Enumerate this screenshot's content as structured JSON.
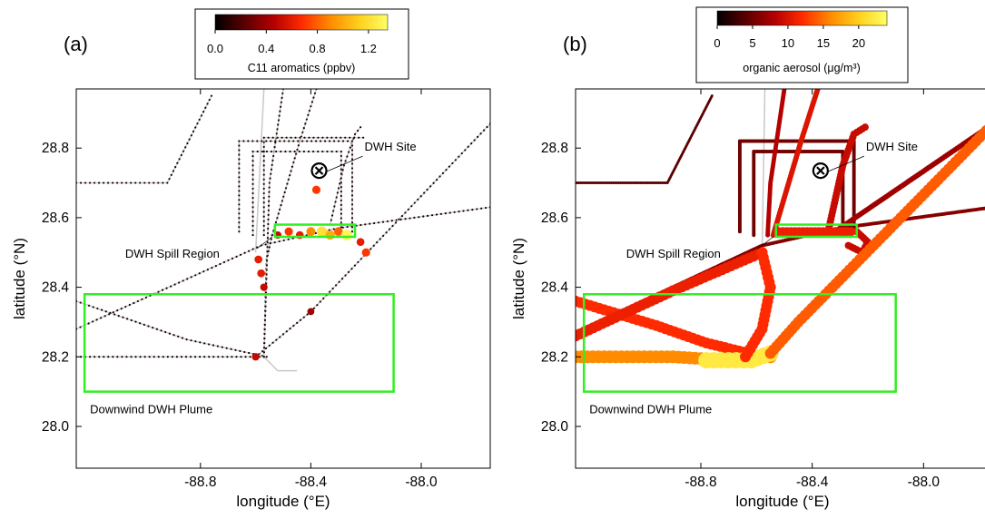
{
  "chart_data": [
    {
      "panel_label": "(a)",
      "type": "scatter",
      "xlabel": "longitude (°E)",
      "ylabel": "latitude (°N)",
      "xlim": [
        -89.25,
        -87.75
      ],
      "ylim": [
        27.88,
        28.97
      ],
      "xticks": [
        -88.8,
        -88.4,
        -88.0
      ],
      "xtick_labels": [
        "-88.8",
        "-88.4",
        "-88.0"
      ],
      "yticks": [
        28.0,
        28.2,
        28.4,
        28.6,
        28.8
      ],
      "ytick_labels": [
        "28.0",
        "28.2",
        "28.4",
        "28.6",
        "28.8"
      ],
      "colorbar": {
        "label": "C11 aromatics (ppbv)",
        "min": 0.0,
        "max": 1.35,
        "ticks": [
          0.0,
          0.4,
          0.8,
          1.2
        ],
        "tick_labels": [
          "0.0",
          "0.4",
          "0.8",
          "1.2"
        ]
      },
      "color_scale": [
        "#000000",
        "#5a0000",
        "#b40000",
        "#ff2a00",
        "#ff8c00",
        "#ffd21e",
        "#ffff66"
      ],
      "tracks": [
        [
          [
            -89.25,
            28.7
          ],
          [
            -88.92,
            28.7
          ],
          [
            -88.76,
            28.95
          ]
        ],
        [
          [
            -89.25,
            28.28
          ],
          [
            -88.58,
            28.52
          ],
          [
            -88.3,
            28.57
          ],
          [
            -87.75,
            28.63
          ]
        ],
        [
          [
            -88.6,
            28.2
          ],
          [
            -88.4,
            28.33
          ],
          [
            -87.75,
            28.87
          ]
        ],
        [
          [
            -89.25,
            28.36
          ],
          [
            -88.85,
            28.25
          ],
          [
            -88.56,
            28.2
          ]
        ],
        [
          [
            -89.25,
            28.2
          ],
          [
            -88.57,
            28.2
          ],
          [
            -88.56,
            28.48
          ],
          [
            -88.54,
            28.55
          ]
        ],
        [
          [
            -88.57,
            28.2
          ],
          [
            -88.55,
            28.7
          ],
          [
            -88.5,
            28.97
          ]
        ],
        [
          [
            -88.54,
            28.55
          ],
          [
            -88.44,
            28.82
          ],
          [
            -88.38,
            28.97
          ]
        ],
        [
          [
            -88.33,
            28.58
          ],
          [
            -88.28,
            28.75
          ],
          [
            -88.24,
            28.84
          ],
          [
            -88.22,
            28.86
          ]
        ],
        [
          [
            -88.66,
            28.56
          ],
          [
            -88.66,
            28.82
          ],
          [
            -88.25,
            28.82
          ],
          [
            -88.25,
            28.56
          ]
        ],
        [
          [
            -88.61,
            28.55
          ],
          [
            -88.61,
            28.79
          ],
          [
            -88.29,
            28.79
          ],
          [
            -88.29,
            28.56
          ]
        ],
        [
          [
            -88.57,
            28.55
          ],
          [
            -88.57,
            28.83
          ],
          [
            -88.21,
            28.83
          ]
        ]
      ],
      "data_points": [
        [
          -88.52,
          28.55,
          0.5
        ],
        [
          -88.48,
          28.56,
          0.7
        ],
        [
          -88.44,
          28.55,
          0.6
        ],
        [
          -88.4,
          28.56,
          0.9
        ],
        [
          -88.36,
          28.56,
          1.2
        ],
        [
          -88.33,
          28.55,
          1.0
        ],
        [
          -88.3,
          28.56,
          0.8
        ],
        [
          -88.27,
          28.55,
          1.3
        ],
        [
          -88.22,
          28.53,
          0.6
        ],
        [
          -88.2,
          28.5,
          0.7
        ],
        [
          -88.38,
          28.68,
          0.7
        ],
        [
          -88.59,
          28.48,
          0.6
        ],
        [
          -88.58,
          28.44,
          0.6
        ],
        [
          -88.57,
          28.4,
          0.5
        ],
        [
          -88.4,
          28.33,
          0.4
        ],
        [
          -88.6,
          28.2,
          0.5
        ]
      ],
      "background_tracks": [
        [
          [
            -88.57,
            28.97
          ],
          [
            -88.6,
            28.5
          ]
        ],
        [
          [
            -88.57,
            28.2
          ],
          [
            -88.52,
            28.16
          ],
          [
            -88.45,
            28.16
          ]
        ]
      ],
      "boxes": [
        {
          "name": "spill",
          "lon": [
            -88.53,
            -88.24
          ],
          "lat": [
            28.545,
            28.58
          ]
        },
        {
          "name": "plume",
          "lon": [
            -89.22,
            -88.1
          ],
          "lat": [
            28.1,
            28.38
          ]
        }
      ],
      "site": {
        "lon": -88.37,
        "lat": 28.735
      },
      "annotations": {
        "site_label": "DWH Site",
        "spill_label": "DWH Spill Region",
        "plume_label": "Downwind DWH Plume"
      }
    },
    {
      "panel_label": "(b)",
      "type": "scatter",
      "xlabel": "longitude (°E)",
      "ylabel": "latitude (°N)",
      "xlim": [
        -89.25,
        -87.75
      ],
      "ylim": [
        27.88,
        28.97
      ],
      "xticks": [
        -88.8,
        -88.4,
        -88.0
      ],
      "xtick_labels": [
        "-88.8",
        "-88.4",
        "-88.0"
      ],
      "yticks": [
        28.0,
        28.2,
        28.4,
        28.6,
        28.8
      ],
      "ytick_labels": [
        "28.0",
        "28.2",
        "28.4",
        "28.6",
        "28.8"
      ],
      "colorbar": {
        "label": "organic aerosol (μg/m³)",
        "min": 0,
        "max": 24,
        "ticks": [
          0,
          5,
          10,
          15,
          20
        ],
        "tick_labels": [
          "0",
          "5",
          "10",
          "15",
          "20"
        ]
      },
      "color_scale": [
        "#000000",
        "#5a0000",
        "#b40000",
        "#ff2a00",
        "#ff8c00",
        "#ffd21e",
        "#ffff66"
      ],
      "tracks": [
        {
          "value": 4,
          "width": 3,
          "points": [
            [
              -89.25,
              28.7
            ],
            [
              -88.92,
              28.7
            ],
            [
              -88.76,
              28.95
            ]
          ]
        },
        {
          "value": 6,
          "width": 4,
          "points": [
            [
              -89.25,
              28.27
            ],
            [
              -88.58,
              28.52
            ],
            [
              -88.3,
              28.57
            ],
            [
              -87.75,
              28.63
            ]
          ]
        },
        {
          "value": 5,
          "width": 4,
          "points": [
            [
              -88.66,
              28.56
            ],
            [
              -88.66,
              28.82
            ],
            [
              -88.25,
              28.82
            ],
            [
              -88.25,
              28.56
            ]
          ]
        },
        {
          "value": 5,
          "width": 4,
          "points": [
            [
              -88.61,
              28.55
            ],
            [
              -88.61,
              28.79
            ],
            [
              -88.29,
              28.79
            ],
            [
              -88.29,
              28.56
            ]
          ]
        },
        {
          "value": 8,
          "width": 5,
          "points": [
            [
              -88.56,
              28.55
            ],
            [
              -88.55,
              28.7
            ],
            [
              -88.5,
              28.97
            ]
          ]
        },
        {
          "value": 10,
          "width": 6,
          "points": [
            [
              -88.54,
              28.55
            ],
            [
              -88.44,
              28.82
            ],
            [
              -88.38,
              28.97
            ]
          ]
        },
        {
          "value": 9,
          "width": 8,
          "points": [
            [
              -88.34,
              28.57
            ],
            [
              -88.29,
              28.75
            ],
            [
              -88.25,
              28.84
            ],
            [
              -88.21,
              28.86
            ]
          ]
        },
        {
          "value": 7,
          "width": 6,
          "points": [
            [
              -87.75,
              28.87
            ],
            [
              -88.3,
              28.57
            ]
          ]
        },
        {
          "value": 9,
          "width": 8,
          "points": [
            [
              -88.24,
              28.56
            ],
            [
              -88.2,
              28.53
            ],
            [
              -88.22,
              28.5
            ],
            [
              -88.27,
              28.52
            ]
          ]
        },
        {
          "value": 12,
          "width": 12,
          "points": [
            [
              -89.25,
              28.36
            ],
            [
              -88.96,
              28.29
            ],
            [
              -88.78,
              28.24
            ],
            [
              -88.58,
              28.2
            ]
          ]
        },
        {
          "value": 16,
          "width": 14,
          "points": [
            [
              -89.25,
              28.2
            ],
            [
              -88.9,
              28.2
            ],
            [
              -88.7,
              28.19
            ],
            [
              -88.55,
              28.2
            ]
          ]
        },
        {
          "value": 22,
          "width": 18,
          "points": [
            [
              -88.78,
              28.19
            ],
            [
              -88.62,
              28.19
            ],
            [
              -88.55,
              28.21
            ]
          ]
        },
        {
          "value": 14,
          "width": 12,
          "points": [
            [
              -88.55,
              28.21
            ],
            [
              -88.45,
              28.3
            ],
            [
              -87.75,
              28.87
            ]
          ]
        },
        {
          "value": 11,
          "width": 12,
          "points": [
            [
              -89.25,
              28.26
            ],
            [
              -88.9,
              28.39
            ],
            [
              -88.58,
              28.5
            ]
          ]
        },
        {
          "value": 12,
          "width": 12,
          "points": [
            [
              -88.58,
              28.5
            ],
            [
              -88.55,
              28.4
            ],
            [
              -88.58,
              28.28
            ],
            [
              -88.64,
              28.2
            ]
          ]
        },
        {
          "value": 11,
          "width": 10,
          "points": [
            [
              -88.52,
              28.56
            ],
            [
              -88.26,
              28.56
            ]
          ]
        }
      ],
      "background_tracks": [
        [
          [
            -88.57,
            28.97
          ],
          [
            -88.58,
            28.5
          ]
        ]
      ],
      "boxes": [
        {
          "name": "spill",
          "lon": [
            -88.53,
            -88.24
          ],
          "lat": [
            28.545,
            28.58
          ]
        },
        {
          "name": "plume",
          "lon": [
            -89.22,
            -88.1
          ],
          "lat": [
            28.1,
            28.38
          ]
        }
      ],
      "site": {
        "lon": -88.37,
        "lat": 28.735
      },
      "annotations": {
        "site_label": "DWH Site",
        "spill_label": "DWH Spill Region",
        "plume_label": "Downwind DWH Plume"
      }
    }
  ]
}
